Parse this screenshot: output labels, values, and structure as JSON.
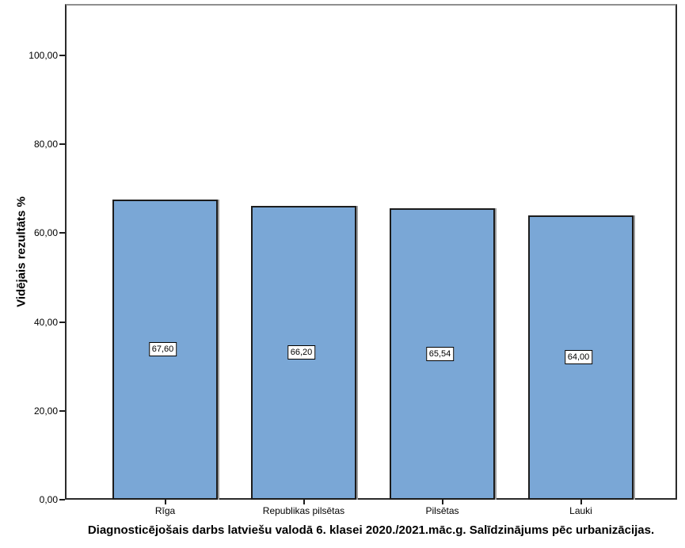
{
  "chart_data": {
    "type": "bar",
    "title": "Diagnosticējošais darbs latviešu valodā 6. klasei 2020./2021.māc.g. Salīdzinājums pēc urbanizācijas.",
    "ylabel": "Vidējais rezultāts %",
    "xlabel": "",
    "categories": [
      "Rīga",
      "Republikas pilsētas",
      "Pilsētas",
      "Lauki"
    ],
    "values": [
      67.6,
      66.2,
      65.54,
      64.0
    ],
    "value_labels": [
      "67,60",
      "66,20",
      "65,54",
      "64,00"
    ],
    "ytick_values": [
      0,
      20,
      40,
      60,
      80,
      100
    ],
    "ytick_labels": [
      "0,00",
      "20,00",
      "40,00",
      "60,00",
      "80,00",
      "100,00"
    ],
    "ylim": [
      0,
      111.6
    ],
    "grid": false,
    "legend": null,
    "title_position": "bottom",
    "decimal_separator": ",",
    "colors": {
      "bar_fill": "#7AA7D6",
      "bar_border": "#1c1c1c",
      "bar_shadow": "#9c9c9c",
      "frame_border": "#2b2b2b",
      "background": "#ffffff",
      "text": "#000000"
    }
  }
}
